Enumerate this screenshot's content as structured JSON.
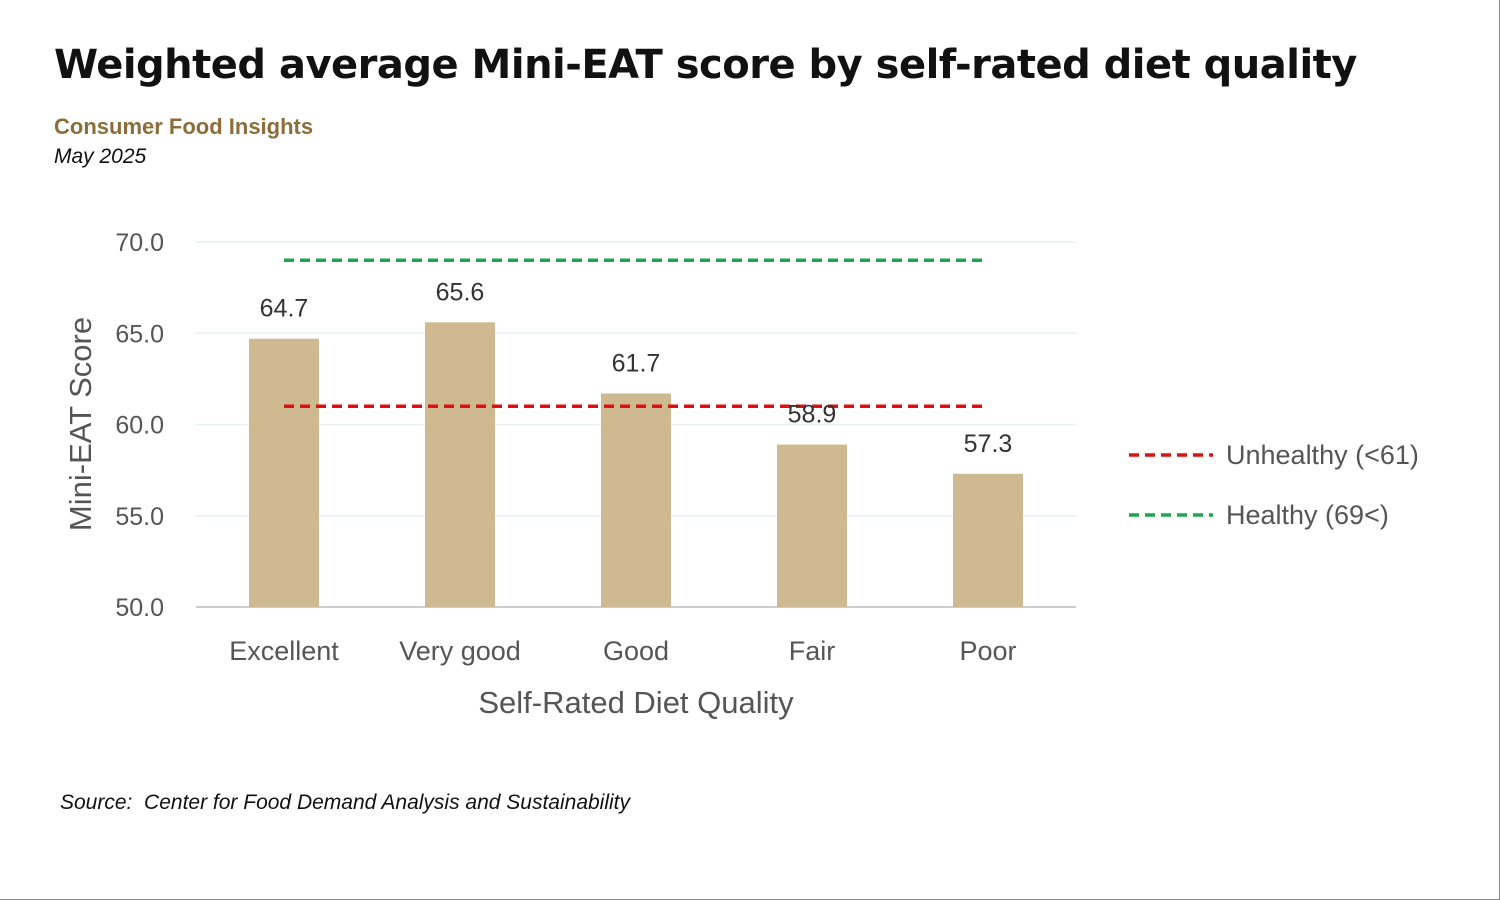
{
  "header": {
    "title": "Weighted average Mini-EAT score by self-rated diet quality",
    "subtitle": "Consumer Food Insights",
    "date": "May 2025"
  },
  "footer": {
    "source": "Source:  Center for Food Demand Analysis and Sustainability"
  },
  "colors": {
    "bar": "#cfb991",
    "unhealthy": "#dd1111",
    "healthy": "#1aa64a",
    "grid": "#e6f2f2",
    "axis": "#cccccc"
  },
  "chart_data": {
    "type": "bar",
    "title": "Weighted average Mini-EAT score by self-rated diet quality",
    "xlabel": "Self-Rated Diet Quality",
    "ylabel": "Mini-EAT Score",
    "categories": [
      "Excellent",
      "Very good",
      "Good",
      "Fair",
      "Poor"
    ],
    "values": [
      64.7,
      65.6,
      61.7,
      58.9,
      57.3
    ],
    "data_labels": [
      "64.7",
      "65.6",
      "61.7",
      "58.9",
      "57.3"
    ],
    "ylim": [
      50,
      70
    ],
    "yticks": [
      50,
      55,
      60,
      65,
      70
    ],
    "ytick_labels": [
      "50.0",
      "55.0",
      "60.0",
      "65.0",
      "70.0"
    ],
    "grid": true,
    "reference_lines": [
      {
        "name": "Unhealthy (<61)",
        "value": 61,
        "style": "dashed",
        "color": "#dd1111"
      },
      {
        "name": "Healthy (69<)",
        "value": 69,
        "style": "dashed",
        "color": "#1aa64a"
      }
    ],
    "legend": {
      "position": "right",
      "entries": [
        "Unhealthy (<61)",
        "Healthy (69<)"
      ]
    }
  }
}
